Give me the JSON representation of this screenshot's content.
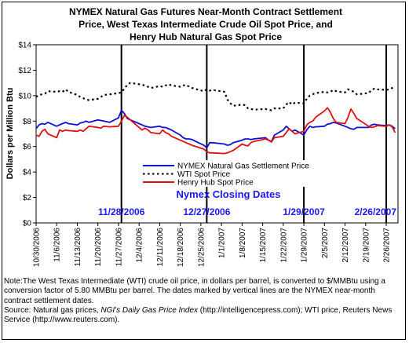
{
  "chart_data": {
    "type": "line",
    "title": [
      "NYMEX Natural Gas Futures Near-Month Contract Settlement",
      "Price, West Texas Intermediate Crude Oil Spot Price, and",
      "Henry Hub Natural Gas Spot Price"
    ],
    "ylabel": "Dollars per Million Btu",
    "ylim": [
      0,
      14
    ],
    "yticks": [
      "$0",
      "$2",
      "$4",
      "$6",
      "$8",
      "$10",
      "$12",
      "$14"
    ],
    "xticks": [
      "10/30/2006",
      "11/6/2006",
      "11/13/2006",
      "11/20/2006",
      "11/27/2006",
      "12/4/2006",
      "12/11/2006",
      "12/18/2006",
      "12/25/2006",
      "1/1/2007",
      "1/8/2007",
      "1/15/2007",
      "1/22/2007",
      "1/29/2007",
      "2/5/2007",
      "2/12/2007",
      "2/19/2007",
      "2/26/2007"
    ],
    "grid": false,
    "legend": "center",
    "start_date": "2006-10-30",
    "end_date": "2007-03-02",
    "closing_dates": [
      {
        "date": "2006-11-28",
        "label": "11/28/2006"
      },
      {
        "date": "2006-12-27",
        "label": "12/27/2006"
      },
      {
        "date": "2007-01-29",
        "label": "1/29/2007"
      },
      {
        "date": "2007-02-26",
        "label": "2/26/2007"
      }
    ],
    "closing_dates_title": "Nymex Closing Dates",
    "series": [
      {
        "name": "NYMEX Natural Gas Settlement Price",
        "color": "#1010d0",
        "style": "solid",
        "points": [
          [
            "2006-10-30",
            7.4
          ],
          [
            "2006-10-31",
            7.7
          ],
          [
            "2006-11-01",
            7.8
          ],
          [
            "2006-11-02",
            7.75
          ],
          [
            "2006-11-03",
            7.9
          ],
          [
            "2006-11-06",
            7.6
          ],
          [
            "2006-11-07",
            7.7
          ],
          [
            "2006-11-08",
            7.8
          ],
          [
            "2006-11-09",
            7.9
          ],
          [
            "2006-11-10",
            7.8
          ],
          [
            "2006-11-13",
            7.7
          ],
          [
            "2006-11-14",
            7.85
          ],
          [
            "2006-11-15",
            7.9
          ],
          [
            "2006-11-16",
            8.0
          ],
          [
            "2006-11-17",
            7.9
          ],
          [
            "2006-11-20",
            8.1
          ],
          [
            "2006-11-21",
            8.05
          ],
          [
            "2006-11-22",
            8.0
          ],
          [
            "2006-11-24",
            7.9
          ],
          [
            "2006-11-27",
            8.25
          ],
          [
            "2006-11-28",
            8.85
          ],
          [
            "2006-11-29",
            8.6
          ],
          [
            "2006-11-30",
            8.2
          ],
          [
            "2006-12-01",
            8.1
          ],
          [
            "2006-12-04",
            7.8
          ],
          [
            "2006-12-05",
            7.7
          ],
          [
            "2006-12-06",
            7.6
          ],
          [
            "2006-12-07",
            7.55
          ],
          [
            "2006-12-08",
            7.5
          ],
          [
            "2006-12-11",
            7.6
          ],
          [
            "2006-12-12",
            7.5
          ],
          [
            "2006-12-13",
            7.5
          ],
          [
            "2006-12-14",
            7.4
          ],
          [
            "2006-12-15",
            7.3
          ],
          [
            "2006-12-18",
            6.9
          ],
          [
            "2006-12-19",
            6.7
          ],
          [
            "2006-12-20",
            6.6
          ],
          [
            "2006-12-21",
            6.6
          ],
          [
            "2006-12-22",
            6.55
          ],
          [
            "2006-12-26",
            6.1
          ],
          [
            "2006-12-27",
            5.9
          ],
          [
            "2006-12-28",
            6.3
          ],
          [
            "2006-12-29",
            6.3
          ],
          [
            "2007-01-02",
            6.2
          ],
          [
            "2007-01-03",
            6.1
          ],
          [
            "2007-01-04",
            6.15
          ],
          [
            "2007-01-05",
            6.3
          ],
          [
            "2007-01-08",
            6.5
          ],
          [
            "2007-01-09",
            6.6
          ],
          [
            "2007-01-10",
            6.6
          ],
          [
            "2007-01-11",
            6.55
          ],
          [
            "2007-01-12",
            6.6
          ],
          [
            "2007-01-16",
            6.7
          ],
          [
            "2007-01-17",
            6.5
          ],
          [
            "2007-01-18",
            6.4
          ],
          [
            "2007-01-19",
            6.9
          ],
          [
            "2007-01-22",
            7.3
          ],
          [
            "2007-01-23",
            7.6
          ],
          [
            "2007-01-24",
            7.4
          ],
          [
            "2007-01-25",
            7.2
          ],
          [
            "2007-01-26",
            7.3
          ],
          [
            "2007-01-29",
            6.9
          ],
          [
            "2007-01-30",
            7.3
          ],
          [
            "2007-01-31",
            7.6
          ],
          [
            "2007-02-01",
            7.5
          ],
          [
            "2007-02-02",
            7.55
          ],
          [
            "2007-02-05",
            7.6
          ],
          [
            "2007-02-06",
            7.75
          ],
          [
            "2007-02-07",
            7.8
          ],
          [
            "2007-02-08",
            7.9
          ],
          [
            "2007-02-09",
            7.85
          ],
          [
            "2007-02-12",
            7.6
          ],
          [
            "2007-02-13",
            7.5
          ],
          [
            "2007-02-14",
            7.4
          ],
          [
            "2007-02-15",
            7.35
          ],
          [
            "2007-02-16",
            7.5
          ],
          [
            "2007-02-20",
            7.5
          ],
          [
            "2007-02-21",
            7.7
          ],
          [
            "2007-02-22",
            7.75
          ],
          [
            "2007-02-23",
            7.7
          ],
          [
            "2007-02-26",
            7.65
          ],
          [
            "2007-02-27",
            7.7
          ],
          [
            "2007-02-28",
            7.6
          ],
          [
            "2007-03-01",
            7.4
          ]
        ]
      },
      {
        "name": "WTI Spot Price",
        "color": "#000000",
        "style": "dotted",
        "points": [
          [
            "2006-10-30",
            9.9
          ],
          [
            "2006-10-31",
            10.05
          ],
          [
            "2006-11-01",
            10.1
          ],
          [
            "2006-11-02",
            10.15
          ],
          [
            "2006-11-03",
            10.35
          ],
          [
            "2006-11-06",
            10.3
          ],
          [
            "2006-11-07",
            10.35
          ],
          [
            "2006-11-08",
            10.3
          ],
          [
            "2006-11-09",
            10.5
          ],
          [
            "2006-11-10",
            10.3
          ],
          [
            "2006-11-13",
            10.05
          ],
          [
            "2006-11-14",
            9.9
          ],
          [
            "2006-11-15",
            9.8
          ],
          [
            "2006-11-16",
            9.7
          ],
          [
            "2006-11-17",
            9.65
          ],
          [
            "2006-11-20",
            9.75
          ],
          [
            "2006-11-21",
            9.9
          ],
          [
            "2006-11-22",
            10.05
          ],
          [
            "2006-11-24",
            10.1
          ],
          [
            "2006-11-27",
            10.2
          ],
          [
            "2006-11-28",
            10.25
          ],
          [
            "2006-11-29",
            10.55
          ],
          [
            "2006-11-30",
            10.85
          ],
          [
            "2006-12-01",
            11.0
          ],
          [
            "2006-12-04",
            10.9
          ],
          [
            "2006-12-05",
            10.85
          ],
          [
            "2006-12-06",
            10.8
          ],
          [
            "2006-12-07",
            10.7
          ],
          [
            "2006-12-08",
            10.6
          ],
          [
            "2006-12-11",
            10.75
          ],
          [
            "2006-12-12",
            10.7
          ],
          [
            "2006-12-13",
            10.8
          ],
          [
            "2006-12-14",
            10.9
          ],
          [
            "2006-12-15",
            10.8
          ],
          [
            "2006-12-18",
            10.7
          ],
          [
            "2006-12-19",
            10.8
          ],
          [
            "2006-12-20",
            10.85
          ],
          [
            "2006-12-21",
            10.7
          ],
          [
            "2006-12-22",
            10.6
          ],
          [
            "2006-12-26",
            10.35
          ],
          [
            "2006-12-27",
            10.5
          ],
          [
            "2006-12-28",
            10.4
          ],
          [
            "2006-12-29",
            10.45
          ],
          [
            "2007-01-02",
            10.3
          ],
          [
            "2007-01-03",
            9.7
          ],
          [
            "2007-01-04",
            9.4
          ],
          [
            "2007-01-05",
            9.2
          ],
          [
            "2007-01-08",
            9.3
          ],
          [
            "2007-01-09",
            9.25
          ],
          [
            "2007-01-10",
            9.0
          ],
          [
            "2007-01-11",
            8.95
          ],
          [
            "2007-01-12",
            8.9
          ],
          [
            "2007-01-16",
            8.95
          ],
          [
            "2007-01-17",
            8.9
          ],
          [
            "2007-01-18",
            8.85
          ],
          [
            "2007-01-19",
            9.0
          ],
          [
            "2007-01-22",
            9.0
          ],
          [
            "2007-01-23",
            9.3
          ],
          [
            "2007-01-24",
            9.5
          ],
          [
            "2007-01-25",
            9.3
          ],
          [
            "2007-01-26",
            9.45
          ],
          [
            "2007-01-29",
            9.4
          ],
          [
            "2007-01-30",
            9.75
          ],
          [
            "2007-01-31",
            10.0
          ],
          [
            "2007-02-01",
            10.1
          ],
          [
            "2007-02-02",
            10.2
          ],
          [
            "2007-02-05",
            10.3
          ],
          [
            "2007-02-06",
            10.25
          ],
          [
            "2007-02-07",
            10.3
          ],
          [
            "2007-02-08",
            10.45
          ],
          [
            "2007-02-09",
            10.35
          ],
          [
            "2007-02-12",
            10.25
          ],
          [
            "2007-02-13",
            10.5
          ],
          [
            "2007-02-14",
            10.4
          ],
          [
            "2007-02-15",
            10.3
          ],
          [
            "2007-02-16",
            10.1
          ],
          [
            "2007-02-20",
            10.2
          ],
          [
            "2007-02-21",
            10.45
          ],
          [
            "2007-02-22",
            10.55
          ],
          [
            "2007-02-23",
            10.5
          ],
          [
            "2007-02-26",
            10.45
          ],
          [
            "2007-02-27",
            10.5
          ],
          [
            "2007-02-28",
            10.6
          ],
          [
            "2007-03-01",
            10.75
          ]
        ]
      },
      {
        "name": "Henry Hub Spot Price",
        "color": "#e01010",
        "style": "solid",
        "points": [
          [
            "2006-10-30",
            6.9
          ],
          [
            "2006-10-31",
            6.8
          ],
          [
            "2006-11-01",
            7.2
          ],
          [
            "2006-11-02",
            7.35
          ],
          [
            "2006-11-03",
            7.0
          ],
          [
            "2006-11-06",
            6.7
          ],
          [
            "2006-11-07",
            7.3
          ],
          [
            "2006-11-08",
            7.2
          ],
          [
            "2006-11-09",
            7.3
          ],
          [
            "2006-11-10",
            7.25
          ],
          [
            "2006-11-13",
            7.2
          ],
          [
            "2006-11-14",
            7.3
          ],
          [
            "2006-11-15",
            7.2
          ],
          [
            "2006-11-16",
            7.4
          ],
          [
            "2006-11-17",
            7.6
          ],
          [
            "2006-11-20",
            7.5
          ],
          [
            "2006-11-21",
            7.45
          ],
          [
            "2006-11-22",
            7.6
          ],
          [
            "2006-11-24",
            7.55
          ],
          [
            "2006-11-27",
            7.6
          ],
          [
            "2006-11-28",
            8.0
          ],
          [
            "2006-11-29",
            8.45
          ],
          [
            "2006-11-30",
            8.3
          ],
          [
            "2006-12-01",
            8.1
          ],
          [
            "2006-12-04",
            7.5
          ],
          [
            "2006-12-05",
            7.3
          ],
          [
            "2006-12-06",
            7.45
          ],
          [
            "2006-12-07",
            7.3
          ],
          [
            "2006-12-08",
            7.1
          ],
          [
            "2006-12-11",
            7.0
          ],
          [
            "2006-12-12",
            7.3
          ],
          [
            "2006-12-13",
            7.1
          ],
          [
            "2006-12-14",
            7.0
          ],
          [
            "2006-12-15",
            6.8
          ],
          [
            "2006-12-18",
            6.5
          ],
          [
            "2006-12-19",
            6.4
          ],
          [
            "2006-12-20",
            6.3
          ],
          [
            "2006-12-21",
            6.2
          ],
          [
            "2006-12-22",
            6.1
          ],
          [
            "2006-12-26",
            5.8
          ],
          [
            "2006-12-27",
            5.6
          ],
          [
            "2006-12-28",
            5.5
          ],
          [
            "2006-12-29",
            5.5
          ],
          [
            "2007-01-02",
            5.45
          ],
          [
            "2007-01-03",
            5.5
          ],
          [
            "2007-01-04",
            5.6
          ],
          [
            "2007-01-05",
            5.7
          ],
          [
            "2007-01-08",
            6.2
          ],
          [
            "2007-01-09",
            6.1
          ],
          [
            "2007-01-10",
            6.05
          ],
          [
            "2007-01-11",
            6.3
          ],
          [
            "2007-01-12",
            6.4
          ],
          [
            "2007-01-16",
            6.6
          ],
          [
            "2007-01-17",
            6.5
          ],
          [
            "2007-01-18",
            6.35
          ],
          [
            "2007-01-19",
            6.7
          ],
          [
            "2007-01-22",
            6.8
          ],
          [
            "2007-01-23",
            7.1
          ],
          [
            "2007-01-24",
            7.4
          ],
          [
            "2007-01-25",
            7.2
          ],
          [
            "2007-01-26",
            7.0
          ],
          [
            "2007-01-29",
            7.2
          ],
          [
            "2007-01-30",
            7.7
          ],
          [
            "2007-01-31",
            7.9
          ],
          [
            "2007-02-01",
            8.0
          ],
          [
            "2007-02-02",
            8.3
          ],
          [
            "2007-02-05",
            8.8
          ],
          [
            "2007-02-06",
            9.05
          ],
          [
            "2007-02-07",
            8.7
          ],
          [
            "2007-02-08",
            8.2
          ],
          [
            "2007-02-09",
            7.9
          ],
          [
            "2007-02-12",
            7.8
          ],
          [
            "2007-02-13",
            8.3
          ],
          [
            "2007-02-14",
            8.95
          ],
          [
            "2007-02-15",
            8.6
          ],
          [
            "2007-02-16",
            8.2
          ],
          [
            "2007-02-20",
            7.6
          ],
          [
            "2007-02-21",
            7.5
          ],
          [
            "2007-02-22",
            7.55
          ],
          [
            "2007-02-23",
            7.65
          ],
          [
            "2007-02-26",
            7.6
          ],
          [
            "2007-02-27",
            7.7
          ],
          [
            "2007-02-28",
            7.55
          ],
          [
            "2007-03-01",
            7.1
          ]
        ]
      }
    ]
  },
  "note": {
    "main": "Note:The West Texas Intermediate (WTI) crude oil price, in dollars per barrel,  is converted to $/MMBtu using a conversion factor of 5.80 MMBtu per barrel.  The dates marked by vertical lines are the NYMEX near-month contract settlement dates.",
    "source_prefix": "Source: Natural gas prices, ",
    "source_italic": "NGI's Daily Gas Price Index",
    "source_suffix": " (http://intelligencepress.com); WTI price, Reuters News Service (http://www.reuters.com)."
  }
}
